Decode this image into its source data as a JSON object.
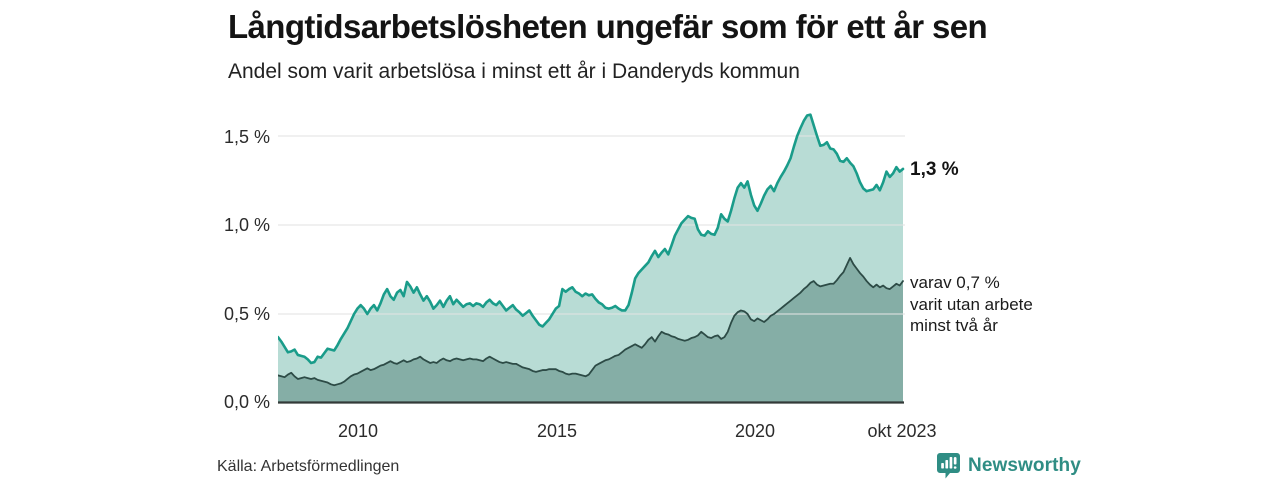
{
  "header": {
    "title": "Långtidsarbetslösheten ungefär som för ett år sen",
    "subtitle": "Andel som varit arbetslösa i minst ett år i Danderyds kommun"
  },
  "annotations": {
    "outer_end": "1,3 %",
    "inner_end_lines": [
      "varav 0,7 %",
      "varit utan arbete",
      "minst två år"
    ]
  },
  "footer": {
    "source": "Källa: Arbetsförmedlingen",
    "brand": "Newsworthy"
  },
  "colors": {
    "outer_line": "#1a9c8a",
    "outer_fill": "#b8dcd5",
    "inner_line": "#2d4b46",
    "inner_fill": "#85aea6",
    "baseline": "#333a38",
    "gridline": "#e2e2e2",
    "brand_teal": "#2f8d84"
  },
  "chart_data": {
    "type": "area",
    "title": "Långtidsarbetslösheten ungefär som för ett år sen",
    "subtitle": "Andel som varit arbetslösa i minst ett år i Danderyds kommun",
    "unit": "%",
    "grid": true,
    "x_axis": {
      "start_year": 2008.0,
      "end_year": 2023.75,
      "monthly_points": 190,
      "tick_labels": [
        "2010",
        "2015",
        "2020",
        "okt 2023"
      ],
      "tick_years": [
        2010,
        2015,
        2020,
        2023.75
      ]
    },
    "y_axis": {
      "tick_labels": [
        "1,5 %",
        "1,0 %",
        "0,5 %",
        "0,0 %"
      ],
      "tick_values": [
        1.5,
        1.0,
        0.5,
        0.0
      ],
      "render_max": 1.64
    },
    "series": [
      {
        "name": "Andel som varit arbetslösa i minst ett år",
        "end_value_label": "1,3 %",
        "latest_value": 1.3,
        "values": [
          0.37,
          0.345,
          0.315,
          0.285,
          0.29,
          0.3,
          0.27,
          0.265,
          0.26,
          0.245,
          0.225,
          0.23,
          0.26,
          0.255,
          0.28,
          0.305,
          0.3,
          0.295,
          0.325,
          0.36,
          0.39,
          0.42,
          0.46,
          0.5,
          0.53,
          0.55,
          0.53,
          0.5,
          0.53,
          0.55,
          0.52,
          0.56,
          0.61,
          0.64,
          0.6,
          0.58,
          0.62,
          0.635,
          0.6,
          0.68,
          0.655,
          0.62,
          0.65,
          0.61,
          0.575,
          0.6,
          0.57,
          0.53,
          0.55,
          0.575,
          0.54,
          0.575,
          0.6,
          0.555,
          0.58,
          0.56,
          0.54,
          0.555,
          0.56,
          0.545,
          0.56,
          0.555,
          0.54,
          0.565,
          0.58,
          0.56,
          0.55,
          0.57,
          0.545,
          0.52,
          0.535,
          0.55,
          0.525,
          0.51,
          0.49,
          0.505,
          0.52,
          0.49,
          0.465,
          0.44,
          0.43,
          0.45,
          0.47,
          0.5,
          0.53,
          0.545,
          0.64,
          0.625,
          0.64,
          0.65,
          0.625,
          0.615,
          0.6,
          0.615,
          0.605,
          0.61,
          0.585,
          0.565,
          0.555,
          0.535,
          0.53,
          0.535,
          0.545,
          0.53,
          0.52,
          0.52,
          0.55,
          0.62,
          0.7,
          0.73,
          0.75,
          0.77,
          0.79,
          0.825,
          0.855,
          0.82,
          0.845,
          0.865,
          0.835,
          0.885,
          0.94,
          0.975,
          1.01,
          1.03,
          1.05,
          1.04,
          1.035,
          0.975,
          0.945,
          0.94,
          0.965,
          0.95,
          0.945,
          0.985,
          1.06,
          1.035,
          1.02,
          1.08,
          1.15,
          1.21,
          1.235,
          1.21,
          1.245,
          1.17,
          1.11,
          1.08,
          1.12,
          1.165,
          1.2,
          1.22,
          1.19,
          1.235,
          1.27,
          1.3,
          1.335,
          1.375,
          1.44,
          1.5,
          1.545,
          1.585,
          1.615,
          1.62,
          1.56,
          1.5,
          1.445,
          1.45,
          1.465,
          1.43,
          1.425,
          1.4,
          1.36,
          1.355,
          1.375,
          1.35,
          1.33,
          1.29,
          1.24,
          1.205,
          1.19,
          1.195,
          1.2,
          1.225,
          1.195,
          1.24,
          1.3,
          1.27,
          1.29,
          1.325,
          1.3,
          1.315
        ]
      },
      {
        "name": "varav varit utan arbete minst två år",
        "end_value_label": "varav 0,7 % varit utan arbete minst två år",
        "latest_value": 0.7,
        "values": [
          0.155,
          0.15,
          0.145,
          0.16,
          0.17,
          0.15,
          0.135,
          0.14,
          0.145,
          0.14,
          0.135,
          0.14,
          0.13,
          0.125,
          0.12,
          0.115,
          0.105,
          0.1,
          0.105,
          0.11,
          0.12,
          0.135,
          0.15,
          0.16,
          0.165,
          0.175,
          0.185,
          0.195,
          0.185,
          0.19,
          0.2,
          0.21,
          0.215,
          0.225,
          0.235,
          0.225,
          0.22,
          0.23,
          0.24,
          0.23,
          0.235,
          0.245,
          0.25,
          0.26,
          0.245,
          0.235,
          0.225,
          0.23,
          0.225,
          0.24,
          0.25,
          0.24,
          0.235,
          0.245,
          0.25,
          0.245,
          0.24,
          0.245,
          0.25,
          0.245,
          0.245,
          0.24,
          0.235,
          0.25,
          0.26,
          0.25,
          0.24,
          0.23,
          0.225,
          0.23,
          0.225,
          0.22,
          0.22,
          0.21,
          0.2,
          0.195,
          0.19,
          0.18,
          0.175,
          0.18,
          0.185,
          0.185,
          0.19,
          0.19,
          0.19,
          0.18,
          0.175,
          0.165,
          0.16,
          0.165,
          0.165,
          0.16,
          0.155,
          0.15,
          0.16,
          0.185,
          0.21,
          0.22,
          0.23,
          0.24,
          0.245,
          0.255,
          0.265,
          0.27,
          0.285,
          0.3,
          0.31,
          0.32,
          0.33,
          0.32,
          0.31,
          0.33,
          0.355,
          0.37,
          0.345,
          0.375,
          0.4,
          0.39,
          0.385,
          0.375,
          0.37,
          0.36,
          0.355,
          0.35,
          0.355,
          0.365,
          0.37,
          0.38,
          0.4,
          0.385,
          0.37,
          0.365,
          0.375,
          0.38,
          0.36,
          0.37,
          0.4,
          0.45,
          0.49,
          0.51,
          0.52,
          0.515,
          0.5,
          0.47,
          0.46,
          0.475,
          0.465,
          0.455,
          0.47,
          0.49,
          0.5,
          0.515,
          0.53,
          0.545,
          0.56,
          0.575,
          0.59,
          0.605,
          0.62,
          0.64,
          0.655,
          0.675,
          0.685,
          0.665,
          0.655,
          0.66,
          0.665,
          0.67,
          0.67,
          0.69,
          0.715,
          0.735,
          0.775,
          0.815,
          0.78,
          0.755,
          0.73,
          0.71,
          0.685,
          0.665,
          0.65,
          0.665,
          0.65,
          0.66,
          0.645,
          0.64,
          0.655,
          0.67,
          0.66,
          0.685
        ]
      }
    ]
  }
}
